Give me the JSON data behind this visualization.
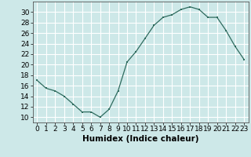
{
  "x": [
    0,
    1,
    2,
    3,
    4,
    5,
    6,
    7,
    8,
    9,
    10,
    11,
    12,
    13,
    14,
    15,
    16,
    17,
    18,
    19,
    20,
    21,
    22,
    23
  ],
  "y": [
    17,
    15.5,
    15,
    14,
    12.5,
    11,
    11,
    10,
    11.5,
    15,
    20.5,
    22.5,
    25,
    27.5,
    29,
    29.5,
    30.5,
    31,
    30.5,
    29,
    29,
    26.5,
    23.5,
    21
  ],
  "line_color": "#2e6b5e",
  "marker_color": "#2e6b5e",
  "bg_color": "#cde8e8",
  "grid_color": "#ffffff",
  "xlabel": "Humidex (Indice chaleur)",
  "xlim": [
    -0.5,
    23.5
  ],
  "ylim": [
    9,
    32
  ],
  "yticks": [
    10,
    12,
    14,
    16,
    18,
    20,
    22,
    24,
    26,
    28,
    30
  ],
  "xticks": [
    0,
    1,
    2,
    3,
    4,
    5,
    6,
    7,
    8,
    9,
    10,
    11,
    12,
    13,
    14,
    15,
    16,
    17,
    18,
    19,
    20,
    21,
    22,
    23
  ],
  "xlabel_fontsize": 7.5,
  "tick_fontsize": 6.5
}
